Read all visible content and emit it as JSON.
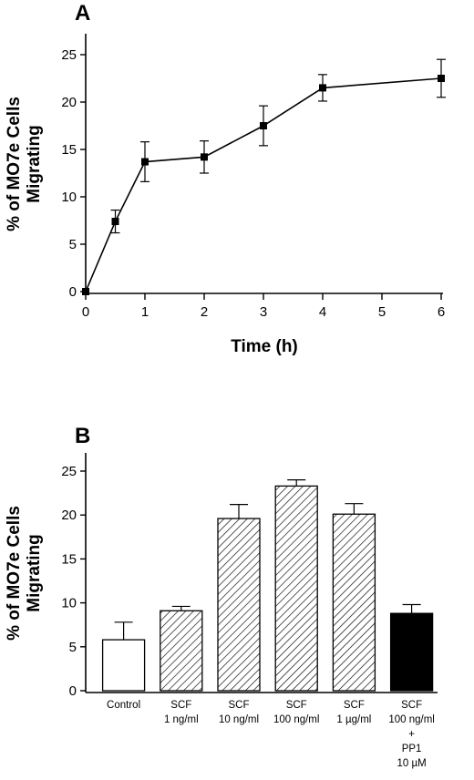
{
  "chart_data": [
    {
      "panel": "A",
      "type": "line",
      "xlabel": "Time (h)",
      "ylabel_line1": "%  of MO7e Cells",
      "ylabel_line2": "Migrating",
      "xlim": [
        0,
        6
      ],
      "ylim": [
        0,
        25
      ],
      "xticks": [
        0,
        1,
        2,
        3,
        4,
        5,
        6
      ],
      "yticks": [
        0,
        5,
        10,
        15,
        20,
        25
      ],
      "grid": false,
      "x": [
        0,
        0.5,
        1,
        2,
        3,
        4,
        6
      ],
      "y": [
        0,
        7.4,
        13.7,
        14.2,
        17.5,
        21.5,
        22.5
      ],
      "error": [
        0,
        1.2,
        2.1,
        1.7,
        2.1,
        1.4,
        2.0
      ]
    },
    {
      "panel": "B",
      "type": "bar",
      "ylabel_line1": "%  of MO7e Cells",
      "ylabel_line2": "Migrating",
      "ylim": [
        0,
        25
      ],
      "yticks": [
        0,
        5,
        10,
        15,
        20,
        25
      ],
      "grid": false,
      "categories": [
        [
          "Control"
        ],
        [
          "SCF",
          "1 ng/ml"
        ],
        [
          "SCF",
          "10 ng/ml"
        ],
        [
          "SCF",
          "100 ng/ml"
        ],
        [
          "SCF",
          "1 µg/ml"
        ],
        [
          "SCF",
          "100 ng/ml",
          "+",
          "PP1",
          "10 µM"
        ]
      ],
      "values": [
        5.8,
        9.1,
        19.6,
        23.3,
        20.1,
        8.8
      ],
      "error": [
        2.0,
        0.5,
        1.6,
        0.7,
        1.2,
        1.0
      ],
      "fills": [
        "open",
        "hatched",
        "hatched",
        "hatched",
        "hatched",
        "solid"
      ]
    }
  ]
}
